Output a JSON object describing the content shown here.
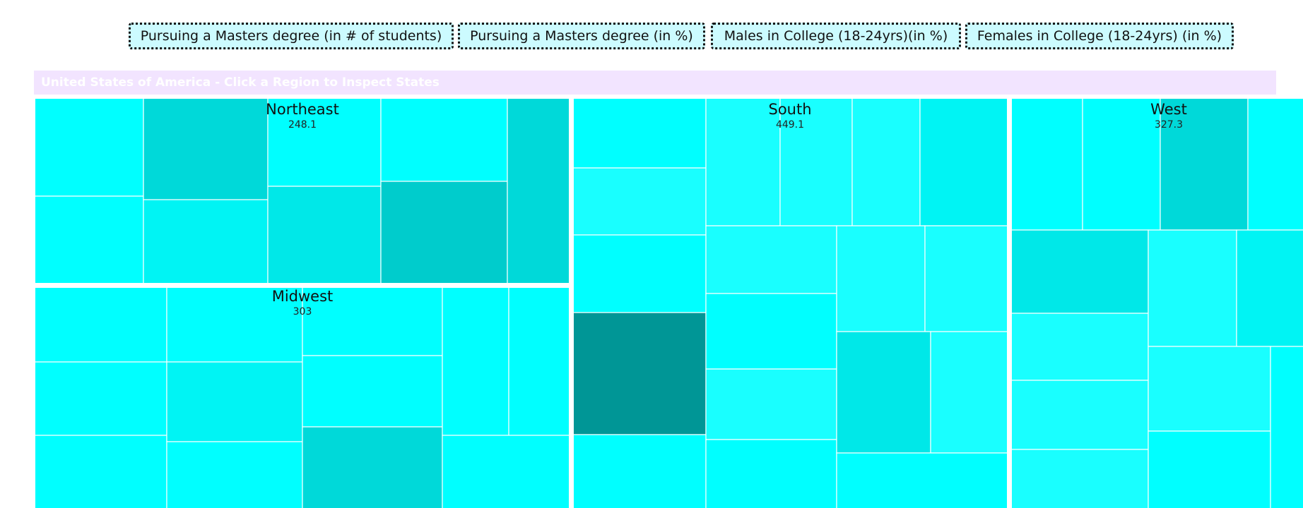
{
  "buttons": [
    {
      "id": "btn-masters-count",
      "label": "Pursuing a Masters degree (in # of students)"
    },
    {
      "id": "btn-masters-pct",
      "label": "Pursuing a Masters degree (in %)"
    },
    {
      "id": "btn-males",
      "label": "Males in College (18-24yrs)(in %)"
    },
    {
      "id": "btn-females",
      "label": "Females in College (18-24yrs) (in %)"
    }
  ],
  "header": {
    "title": "United States of America - Click a Region to Inspect States"
  },
  "colors": {
    "header_bg": "#f2e4ff",
    "button_bg": "#ccfbff",
    "scale": {
      "light": "#19ffff",
      "c1": "#00ffff",
      "c2": "#00f4f4",
      "c3": "#00e8e8",
      "c4": "#00d9d9",
      "c5": "#00cccc",
      "dark": "#009696"
    }
  },
  "chart_data": {
    "type": "treemap",
    "title": "United States of America - Click a Region to Inspect States",
    "regions": [
      {
        "name": "Northeast",
        "value": "248.1"
      },
      {
        "name": "South",
        "value": "449.1"
      },
      {
        "name": "Midwest",
        "value": "303"
      },
      {
        "name": "West",
        "value": "327.3"
      }
    ]
  }
}
